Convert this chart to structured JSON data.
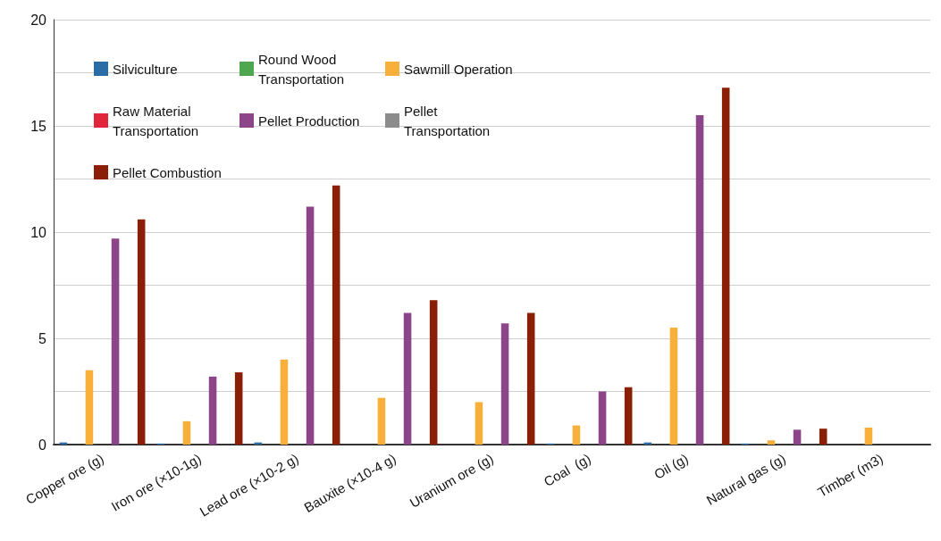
{
  "chart_data": {
    "type": "bar",
    "categories": [
      "Copper ore (g)",
      "Iron ore (×10-1g)",
      "Lead ore (×10-2 g)",
      "Bauxite (×10-4 g)",
      "Uranium ore (g)",
      "Coal  (g)",
      "Oil (g)",
      "Natural gas (g)",
      "Timber (m3)"
    ],
    "series": [
      {
        "name": "Silviculture",
        "color": "#2a6ca6",
        "values": [
          0.1,
          0.05,
          0.1,
          0,
          0,
          0.05,
          0.1,
          0.05,
          0
        ]
      },
      {
        "name": "Round Wood Transportation",
        "color": "#4ea64e",
        "values": [
          0,
          0,
          0,
          0,
          0,
          0,
          0,
          0,
          0
        ]
      },
      {
        "name": "Sawmill Operation",
        "color": "#f8b03b",
        "values": [
          3.5,
          1.1,
          4,
          2.2,
          2,
          0.9,
          5.5,
          0.2,
          0.8
        ]
      },
      {
        "name": "Raw Material Transportation",
        "color": "#e0263a",
        "values": [
          0,
          0,
          0,
          0,
          0,
          0,
          0,
          0,
          0
        ]
      },
      {
        "name": "Pellet Production",
        "color": "#8c4589",
        "values": [
          9.7,
          3.2,
          11.2,
          6.2,
          5.7,
          2.5,
          15.5,
          0.7,
          0
        ]
      },
      {
        "name": "Pellet Transportation",
        "color": "#8c8c8c",
        "values": [
          0,
          0,
          0,
          0,
          0,
          0,
          0,
          0,
          0
        ]
      },
      {
        "name": "Pellet Combustion",
        "color": "#8a1e06",
        "values": [
          10.6,
          3.4,
          12.2,
          6.8,
          6.2,
          2.7,
          16.8,
          0.75,
          0
        ]
      }
    ],
    "ylim": [
      0,
      20
    ],
    "yticks": [
      0,
      {
        "value": 2.5,
        "label": null
      },
      5,
      {
        "value": 7.5,
        "label": null
      },
      10,
      {
        "value": 12.5,
        "label": null
      },
      15,
      {
        "value": 17.5,
        "label": null
      },
      20
    ],
    "grid": "y",
    "legend": "top left"
  }
}
